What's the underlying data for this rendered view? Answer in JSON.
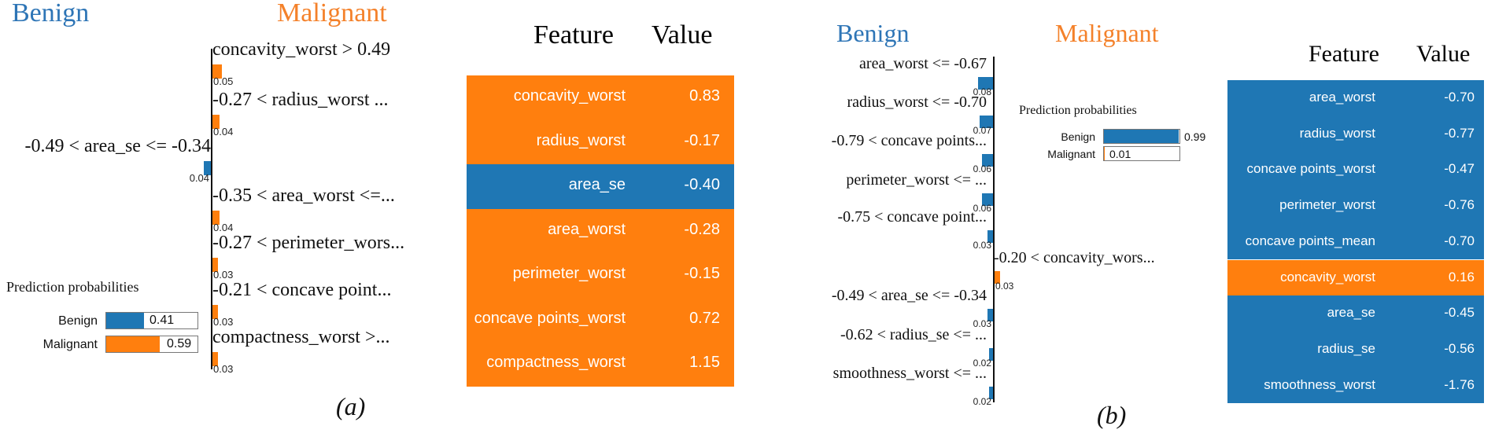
{
  "colors": {
    "benign": "#1f77b4",
    "malignant": "#ff7f0e",
    "headBlue": "#2e75b6",
    "headOrange": "#f4812a"
  },
  "panel_a": {
    "caption": "(a)",
    "class_neg": "Benign",
    "class_pos": "Malignant",
    "prob_title": "Prediction probabilities",
    "probs": [
      {
        "label": "Benign",
        "value": "0.41"
      },
      {
        "label": "Malignant",
        "value": "0.59"
      }
    ],
    "table_header": {
      "feature": "Feature",
      "value": "Value"
    },
    "table_rows": [
      {
        "feature": "concavity_worst",
        "value": "0.83",
        "cls": "malignant"
      },
      {
        "feature": "radius_worst",
        "value": "-0.17",
        "cls": "malignant"
      },
      {
        "feature": "area_se",
        "value": "-0.40",
        "cls": "benign"
      },
      {
        "feature": "area_worst",
        "value": "-0.28",
        "cls": "malignant"
      },
      {
        "feature": "perimeter_worst",
        "value": "-0.15",
        "cls": "malignant"
      },
      {
        "feature": "concave points_worst",
        "value": "0.72",
        "cls": "malignant"
      },
      {
        "feature": "compactness_worst",
        "value": "1.15",
        "cls": "malignant"
      }
    ]
  },
  "panel_b": {
    "caption": "(b)",
    "class_neg": "Benign",
    "class_pos": "Malignant",
    "prob_title": "Prediction probabilities",
    "probs": [
      {
        "label": "Benign",
        "value": "0.99"
      },
      {
        "label": "Malignant",
        "value": "0.01"
      }
    ],
    "table_header": {
      "feature": "Feature",
      "value": "Value"
    },
    "table_rows": [
      {
        "feature": "area_worst",
        "value": "-0.70",
        "cls": "benign"
      },
      {
        "feature": "radius_worst",
        "value": "-0.77",
        "cls": "benign"
      },
      {
        "feature": "concave points_worst",
        "value": "-0.47",
        "cls": "benign"
      },
      {
        "feature": "perimeter_worst",
        "value": "-0.76",
        "cls": "benign"
      },
      {
        "feature": "concave points_mean",
        "value": "-0.70",
        "cls": "benign"
      },
      {
        "feature": "concavity_worst",
        "value": "0.16",
        "cls": "malignant"
      },
      {
        "feature": "area_se",
        "value": "-0.45",
        "cls": "benign"
      },
      {
        "feature": "radius_se",
        "value": "-0.56",
        "cls": "benign"
      },
      {
        "feature": "smoothness_worst",
        "value": "-1.76",
        "cls": "benign"
      }
    ]
  },
  "chart_data": [
    {
      "type": "bar",
      "title": "",
      "categories": [
        "concavity_worst > 0.49",
        "-0.27 < radius_worst ...",
        "-0.49 < area_se <= -0.34",
        "-0.35 < area_worst <=...",
        "-0.27 < perimeter_wors...",
        "-0.21 < concave point...",
        "compactness_worst >..."
      ],
      "values": [
        0.05,
        0.04,
        0.04,
        0.04,
        0.03,
        0.03,
        0.03
      ],
      "value_labels": [
        "0.05",
        "0.04",
        "0.04",
        "0.04",
        "0.03",
        "0.03",
        "0.03"
      ],
      "classes": [
        "malignant",
        "malignant",
        "benign",
        "malignant",
        "malignant",
        "malignant",
        "malignant"
      ],
      "legend": [
        "Benign",
        "Malignant"
      ]
    },
    {
      "type": "bar",
      "title": "",
      "categories": [
        "area_worst <= -0.67",
        "radius_worst <= -0.70",
        "-0.79 < concave points...",
        "perimeter_worst <= ...",
        "-0.75 < concave point...",
        "-0.20 < concavity_wors...",
        "-0.49 < area_se <= -0.34",
        "-0.62 < radius_se <= ...",
        "smoothness_worst <= ..."
      ],
      "values": [
        0.08,
        0.07,
        0.06,
        0.06,
        0.03,
        0.03,
        0.03,
        0.02,
        0.02
      ],
      "value_labels": [
        "0.08",
        "0.07",
        "0.06",
        "0.06",
        "0.03",
        "0.03",
        "0.03",
        "0.02",
        "0.02"
      ],
      "classes": [
        "benign",
        "benign",
        "benign",
        "benign",
        "benign",
        "malignant",
        "benign",
        "benign",
        "benign"
      ],
      "legend": [
        "Benign",
        "Malignant"
      ]
    },
    {
      "type": "bar",
      "title": "Prediction probabilities",
      "categories": [
        "Benign",
        "Malignant"
      ],
      "values": [
        0.41,
        0.59
      ]
    },
    {
      "type": "bar",
      "title": "Prediction probabilities",
      "categories": [
        "Benign",
        "Malignant"
      ],
      "values": [
        0.99,
        0.01
      ]
    }
  ]
}
